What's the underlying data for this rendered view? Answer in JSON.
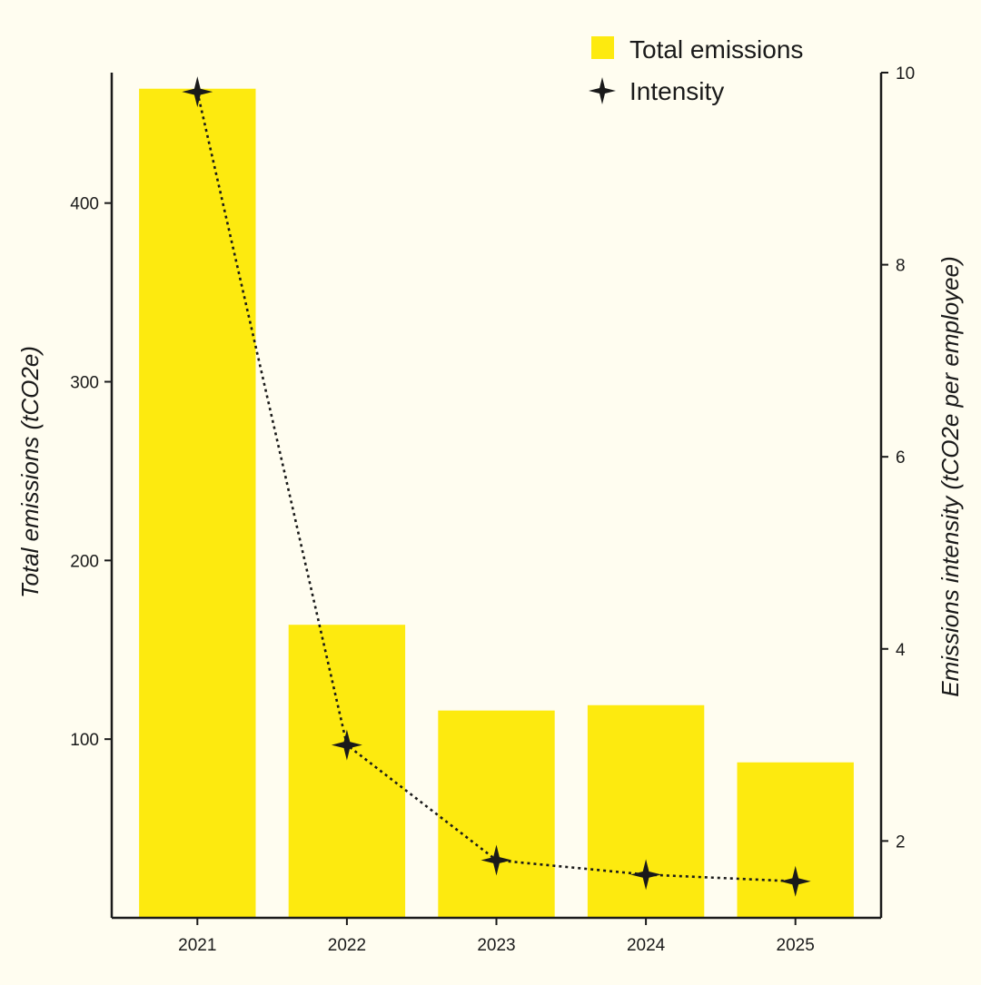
{
  "colors": {
    "background": "#FFFDF0",
    "bar": "#FDEA0F",
    "ink": "#1a1a1a"
  },
  "chart_data": {
    "type": "bar",
    "categories": [
      "2021",
      "2022",
      "2023",
      "2024",
      "2025"
    ],
    "series": [
      {
        "name": "Total emissions",
        "kind": "bar",
        "axis": "left",
        "values": [
          464,
          164,
          116,
          119,
          87
        ]
      },
      {
        "name": "Intensity",
        "kind": "line",
        "axis": "right",
        "line_style": "dotted",
        "marker": "four-point-star",
        "values": [
          9.8,
          3.0,
          1.8,
          1.65,
          1.58
        ]
      }
    ],
    "y_left": {
      "label": "Total emissions (tCO2e)",
      "lim": [
        0,
        473
      ],
      "ticks": [
        100,
        200,
        300,
        400
      ],
      "tick_labels": [
        "100",
        "200",
        "300",
        "400"
      ]
    },
    "y_right": {
      "label": "Emissions intensity (tCO2e per employee)",
      "lim": [
        1.2,
        10
      ],
      "ticks": [
        2,
        4,
        6,
        8,
        10
      ],
      "tick_labels": [
        "2",
        "4",
        "6",
        "8",
        "10"
      ]
    },
    "legend": {
      "position": "top-right",
      "entries": [
        "Total emissions",
        "Intensity"
      ]
    },
    "grid": false
  }
}
